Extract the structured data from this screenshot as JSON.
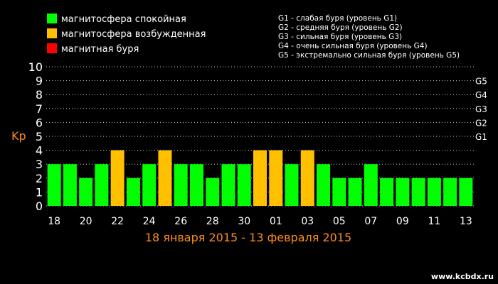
{
  "colors": {
    "background": "#000000",
    "quiet": "#00ff00",
    "disturbed": "#ffc000",
    "storm": "#ff0000",
    "accent": "#ff8c1a",
    "grid": "#cfcfcf",
    "text": "#ffffff"
  },
  "legend": [
    {
      "label": "магнитосфера спокойная",
      "status": "quiet"
    },
    {
      "label": "магнитосфера возбужденная",
      "status": "disturbed"
    },
    {
      "label": "магнитная буря",
      "status": "storm"
    }
  ],
  "storm_levels": [
    "G1 - слабая буря (уровень G1)",
    "G2 - средняя буря (уровень G2)",
    "G3 - сильная буря (уровень G3)",
    "G4 - очень сильная буря (уровень G4)",
    "G5 - экстремально сильная буря (уровень G5)"
  ],
  "watermark": "www.kcbdx.ru",
  "chart_data": {
    "type": "bar",
    "ylabel": "Kp",
    "xlabel": "18 января 2015 - 13 февраля 2015",
    "ylim": [
      0,
      10
    ],
    "yticks": [
      "0",
      "1",
      "2",
      "3",
      "4",
      "5",
      "6",
      "7",
      "8",
      "9",
      "10"
    ],
    "g_scale": [
      {
        "label": "G1",
        "kp": 5
      },
      {
        "label": "G2",
        "kp": 6
      },
      {
        "label": "G3",
        "kp": 7
      },
      {
        "label": "G4",
        "kp": 8
      },
      {
        "label": "G5",
        "kp": 9
      }
    ],
    "grid": true,
    "legend_position": "top-left",
    "x_tick_labels": [
      "18",
      "20",
      "22",
      "24",
      "26",
      "28",
      "30",
      "01",
      "03",
      "05",
      "07",
      "09",
      "11",
      "13"
    ],
    "categories": [
      "18",
      "19",
      "20",
      "21",
      "22",
      "23",
      "24",
      "25",
      "26",
      "27",
      "28",
      "29",
      "30",
      "31",
      "01",
      "02",
      "03",
      "04",
      "05",
      "06",
      "07",
      "08",
      "09",
      "10",
      "11",
      "12",
      "13"
    ],
    "values": [
      3,
      3,
      2,
      3,
      4,
      2,
      3,
      4,
      3,
      3,
      2,
      3,
      3,
      4,
      4,
      3,
      4,
      3,
      2,
      2,
      3,
      2,
      2,
      2,
      2,
      2,
      2
    ],
    "status": [
      "quiet",
      "quiet",
      "quiet",
      "quiet",
      "disturbed",
      "quiet",
      "quiet",
      "disturbed",
      "quiet",
      "quiet",
      "quiet",
      "quiet",
      "quiet",
      "disturbed",
      "disturbed",
      "quiet",
      "disturbed",
      "quiet",
      "quiet",
      "quiet",
      "quiet",
      "quiet",
      "quiet",
      "quiet",
      "quiet",
      "quiet",
      "quiet"
    ]
  }
}
